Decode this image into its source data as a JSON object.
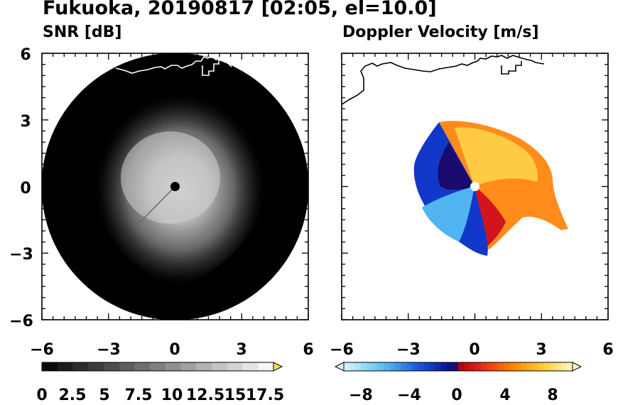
{
  "header": {
    "title": "Fukuoka, 20190817 [02:05, el=10.0]"
  },
  "chart_data": [
    {
      "type": "heatmap",
      "title": "SNR [dB]",
      "xlim": [
        -6,
        6
      ],
      "ylim": [
        -6,
        6
      ],
      "x_ticks": [
        -6,
        -3,
        0,
        3,
        6
      ],
      "y_ticks": [
        6,
        3,
        0,
        -3,
        -6
      ],
      "x_tick_labels": [
        "−6",
        "−3",
        "0",
        "3",
        "6"
      ],
      "y_tick_labels": [
        "6",
        "3",
        "0",
        "−3",
        "−6"
      ],
      "grid": false,
      "colormap": "grayscale black to white",
      "colorbar": {
        "min": 0,
        "max": 18.75,
        "step": 1.25,
        "extend": "max",
        "ticks": [
          0,
          2.5,
          5,
          7.5,
          10,
          12.5,
          15,
          17.5
        ],
        "tick_labels": [
          "0",
          "2.5",
          "5",
          "7.5",
          "10",
          "12.5",
          "15",
          "17.5"
        ]
      }
    },
    {
      "type": "heatmap",
      "title": "Doppler Velocity [m/s]",
      "xlim": [
        -6,
        6
      ],
      "ylim": [
        -6,
        6
      ],
      "x_ticks": [
        -6,
        -3,
        0,
        3,
        6
      ],
      "y_ticks": [
        6,
        3,
        0,
        -3,
        -6
      ],
      "x_tick_labels": [
        "−6",
        "−3",
        "0",
        "3",
        "6"
      ],
      "grid": false,
      "colormap": "blue (negative) to yellow (positive)",
      "colorbar": {
        "min": -10,
        "max": 10,
        "step": 0.5,
        "extend": "both",
        "ticks": [
          -8,
          -4,
          0,
          4,
          8
        ],
        "tick_labels": [
          "−8",
          "−4",
          "0",
          "4",
          "8"
        ]
      }
    }
  ],
  "colors": {
    "frame": "#000000",
    "disc": "#000000",
    "coastline_on_dark": "#ffffff",
    "coastline_on_light": "#000000",
    "radar_site_left": "#000000",
    "radar_site_right": "#ffffff",
    "velocity_low": "#ddf6fb",
    "velocity_mid_negative": "#0c24b9",
    "velocity_zero_negative": "#2a0a7a",
    "velocity_zero_positive": "#c40018",
    "velocity_mid_positive": "#ff7a00",
    "velocity_high": "#fffac8"
  }
}
